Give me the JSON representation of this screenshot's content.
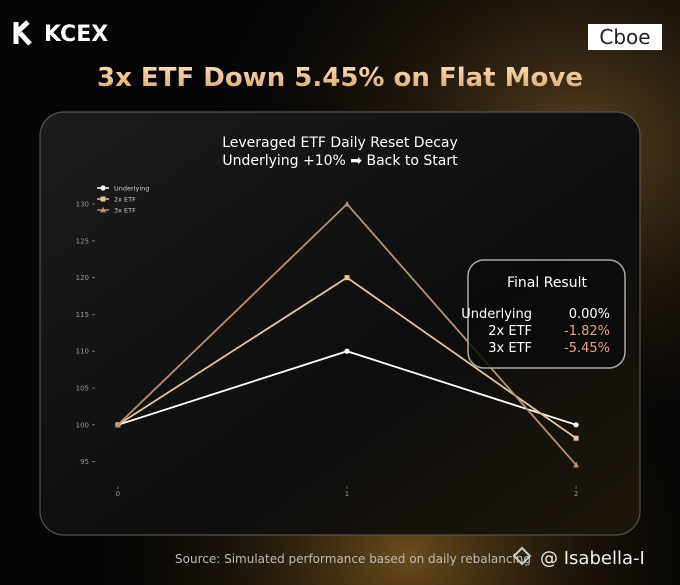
{
  "brand": "KCEX",
  "partner": "Cboe",
  "headline": "3x ETF Down 5.45% on Flat Move",
  "final_result": {
    "title": "Final Result",
    "rows": [
      {
        "label": "Underlying",
        "value": "0.00%",
        "color": "#ffffff"
      },
      {
        "label": "2x ETF",
        "value": "-1.82%",
        "color": "#e8a57a"
      },
      {
        "label": "3x ETF",
        "value": "-5.45%",
        "color": "#e8a57a"
      }
    ]
  },
  "source": "Source: Simulated performance based on daily rebalancing",
  "watermark": "@ Isabella-I",
  "chart_data": {
    "type": "line",
    "title": "Leveraged ETF Daily Reset Decay",
    "subtitle": "Underlying +10% ➡ Back to Start",
    "x": [
      0,
      1,
      2
    ],
    "xlim": [
      -0.1,
      2.1
    ],
    "xticks": [
      0,
      1,
      2
    ],
    "ylim": [
      92.5,
      131.5
    ],
    "yticks": [
      95,
      100,
      105,
      110,
      115,
      120,
      125,
      130
    ],
    "grid": false,
    "legend": "upper left",
    "series": [
      {
        "name": "Underlying",
        "color": "#ffffff",
        "marker": "circle",
        "values": [
          100,
          110,
          100
        ]
      },
      {
        "name": "2x ETF",
        "color": "#e6c39a",
        "marker": "square",
        "values": [
          100,
          120,
          98.18
        ]
      },
      {
        "name": "3x ETF",
        "color": "#b8916f",
        "marker": "triangle",
        "values": [
          100,
          130,
          94.55
        ]
      }
    ]
  }
}
